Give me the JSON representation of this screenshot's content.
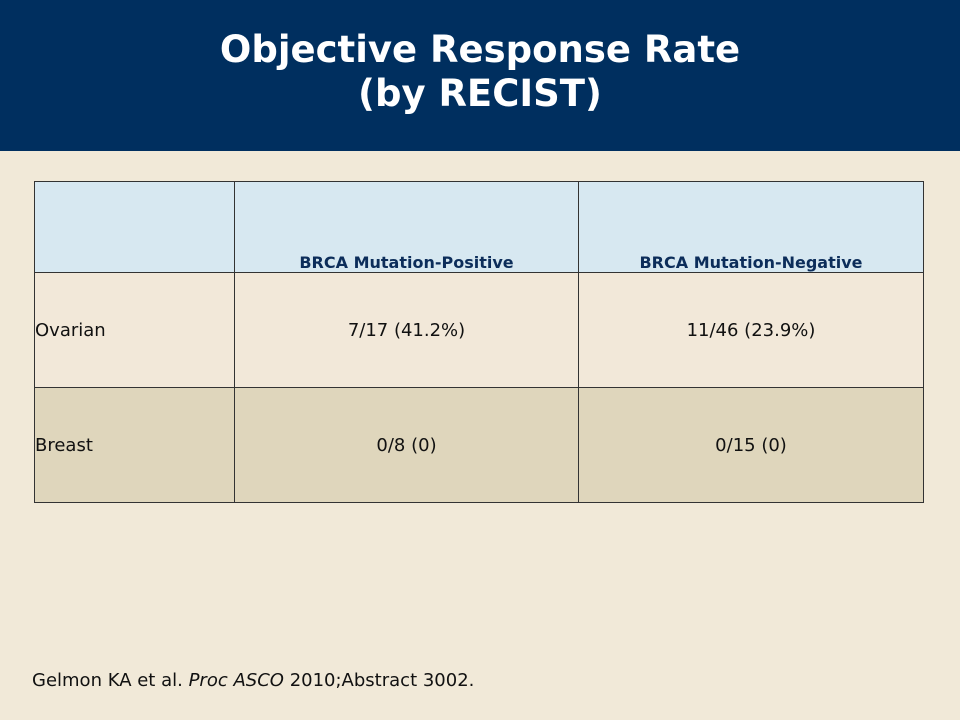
{
  "slide": {
    "title_line1": "Objective Response Rate",
    "title_line2": "(by RECIST)"
  },
  "table": {
    "headers": [
      "",
      "BRCA Mutation-Positive",
      "BRCA Mutation-Negative"
    ],
    "rows": [
      {
        "label": "Ovarian",
        "positive": "7/17 (41.2%)",
        "negative": "11/46 (23.9%)"
      },
      {
        "label": "Breast",
        "positive": "0/8 (0)",
        "negative": "0/15 (0)"
      }
    ]
  },
  "citation": {
    "authors": "Gelmon KA et al.",
    "journal": "Proc ASCO",
    "details": "2010;Abstract 3002."
  },
  "colors": {
    "banner": "#002f5f",
    "background": "#f1e9d8",
    "header_fill": "#d7e8f1",
    "row_alt_fill": "#dfd6bc"
  }
}
